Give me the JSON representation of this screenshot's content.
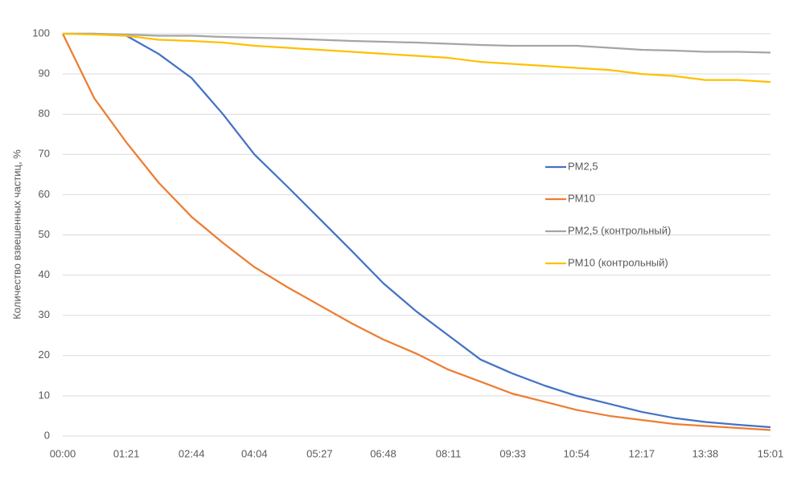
{
  "chart_data": {
    "type": "line",
    "y_label": "Количество взвешенных частиц, %",
    "x": [
      0,
      40,
      81,
      122,
      164,
      204,
      244,
      286,
      327,
      368,
      408,
      450,
      491,
      532,
      573,
      614,
      654,
      696,
      737,
      778,
      818,
      860,
      901
    ],
    "xlim": [
      0,
      901
    ],
    "xticks": [
      {
        "value": 0,
        "label": "00:00"
      },
      {
        "value": 81,
        "label": "01:21"
      },
      {
        "value": 164,
        "label": "02:44"
      },
      {
        "value": 244,
        "label": "04:04"
      },
      {
        "value": 327,
        "label": "05:27"
      },
      {
        "value": 408,
        "label": "06:48"
      },
      {
        "value": 491,
        "label": "08:11"
      },
      {
        "value": 573,
        "label": "09:33"
      },
      {
        "value": 654,
        "label": "10:54"
      },
      {
        "value": 737,
        "label": "12:17"
      },
      {
        "value": 818,
        "label": "13:38"
      },
      {
        "value": 901,
        "label": "15:01"
      }
    ],
    "ylim": [
      0,
      100
    ],
    "yticks": [
      0,
      10,
      20,
      30,
      40,
      50,
      60,
      70,
      80,
      90,
      100
    ],
    "grid": true,
    "legend": "right",
    "series": [
      {
        "name": "PM2,5",
        "color": "#4472c4",
        "values": [
          100,
          100,
          99.5,
          95,
          89,
          80,
          70,
          62,
          54,
          46,
          38,
          31,
          25,
          19,
          15.5,
          12.5,
          10,
          8,
          6,
          4.5,
          3.5,
          2.8,
          2.2
        ]
      },
      {
        "name": "PM10",
        "color": "#ed7d31",
        "values": [
          100,
          84,
          73,
          63,
          54.5,
          48,
          42,
          37,
          32.5,
          28,
          24,
          20.5,
          16.5,
          13.5,
          10.5,
          8.5,
          6.5,
          5,
          4,
          3,
          2.5,
          2,
          1.5
        ]
      },
      {
        "name": "PM2,5 (контрольный)",
        "color": "#a5a5a5",
        "values": [
          100,
          100,
          99.8,
          99.5,
          99.5,
          99.2,
          99,
          98.8,
          98.5,
          98.2,
          98,
          97.8,
          97.5,
          97.2,
          97,
          97,
          97,
          96.5,
          96,
          95.8,
          95.5,
          95.5,
          95.3
        ]
      },
      {
        "name": "PM10 (контрольный)",
        "color": "#ffc000",
        "values": [
          100,
          99.8,
          99.5,
          98.5,
          98.2,
          97.8,
          97,
          96.5,
          96,
          95.5,
          95,
          94.5,
          94,
          93,
          92.5,
          92,
          91.5,
          91,
          90,
          89.5,
          88.5,
          88.5,
          88
        ]
      }
    ]
  }
}
